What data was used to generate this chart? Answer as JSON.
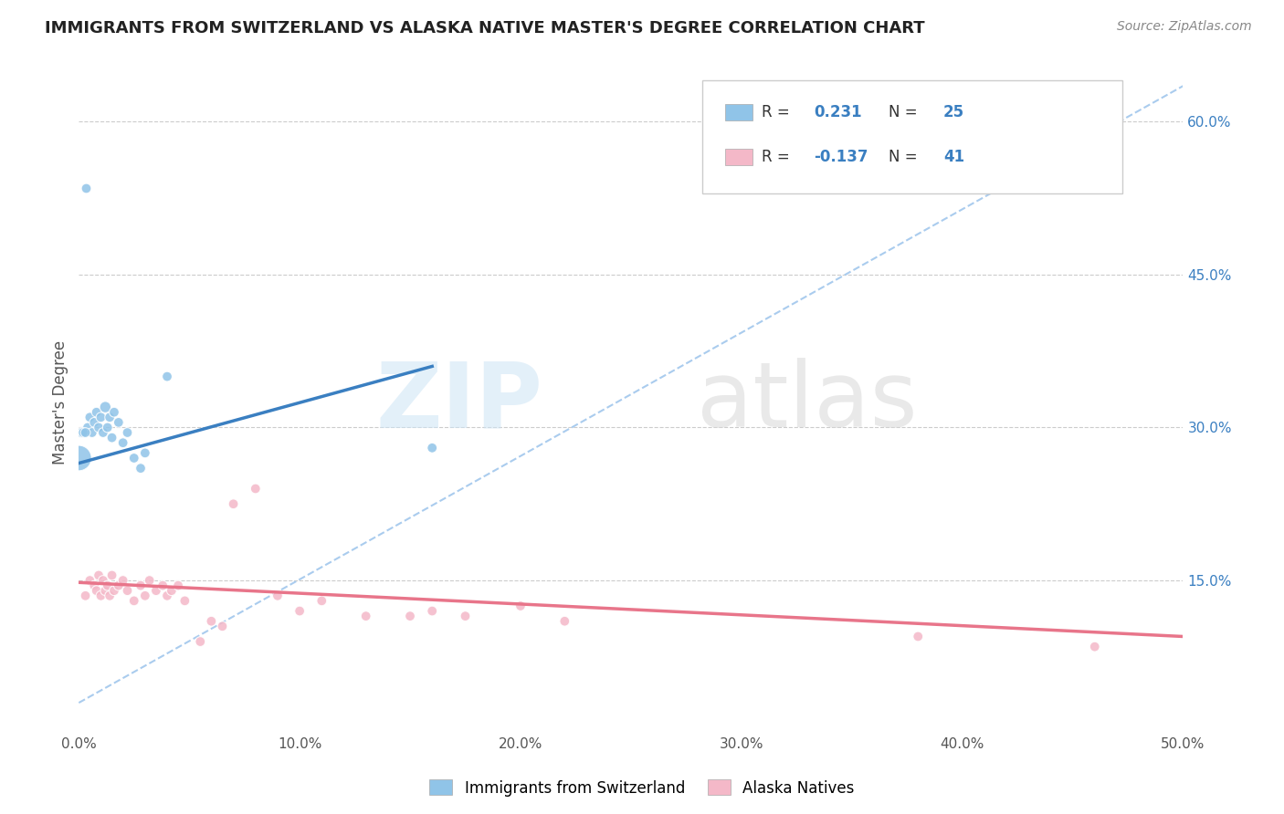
{
  "title": "IMMIGRANTS FROM SWITZERLAND VS ALASKA NATIVE MASTER'S DEGREE CORRELATION CHART",
  "source": "Source: ZipAtlas.com",
  "ylabel": "Master's Degree",
  "xlim": [
    0.0,
    0.5
  ],
  "ylim": [
    0.0,
    0.65
  ],
  "x_ticks": [
    0.0,
    0.1,
    0.2,
    0.3,
    0.4,
    0.5
  ],
  "x_tick_labels": [
    "0.0%",
    "10.0%",
    "20.0%",
    "30.0%",
    "40.0%",
    "50.0%"
  ],
  "y_ticks_right": [
    0.15,
    0.3,
    0.45,
    0.6
  ],
  "y_tick_labels_right": [
    "15.0%",
    "30.0%",
    "45.0%",
    "60.0%"
  ],
  "grid_color": "#cccccc",
  "background_color": "#ffffff",
  "blue_color": "#90c4e8",
  "pink_color": "#f4b8c8",
  "blue_line_color": "#3a7fc1",
  "pink_line_color": "#e8758a",
  "legend_text_color": "#3a7fc1",
  "r_blue": 0.231,
  "n_blue": 25,
  "r_pink": -0.137,
  "n_pink": 41,
  "trend_line_gray": "#aaccee",
  "blue_scatter_x": [
    0.004,
    0.005,
    0.006,
    0.007,
    0.008,
    0.009,
    0.01,
    0.011,
    0.012,
    0.013,
    0.014,
    0.015,
    0.016,
    0.018,
    0.02,
    0.022,
    0.025,
    0.028,
    0.03,
    0.04,
    0.001,
    0.002,
    0.003,
    0.0,
    0.16
  ],
  "blue_scatter_y": [
    0.3,
    0.31,
    0.295,
    0.305,
    0.315,
    0.3,
    0.31,
    0.295,
    0.32,
    0.3,
    0.31,
    0.29,
    0.315,
    0.305,
    0.285,
    0.295,
    0.27,
    0.26,
    0.275,
    0.35,
    0.295,
    0.295,
    0.295,
    0.27,
    0.28
  ],
  "blue_scatter_sizes": [
    60,
    60,
    60,
    60,
    60,
    60,
    60,
    60,
    80,
    60,
    60,
    60,
    60,
    60,
    60,
    60,
    60,
    60,
    60,
    60,
    60,
    60,
    60,
    400,
    60
  ],
  "blue_outlier_x": [
    0.003
  ],
  "blue_outlier_y": [
    0.535
  ],
  "blue_outlier_sizes": [
    60
  ],
  "pink_scatter_x": [
    0.003,
    0.005,
    0.007,
    0.008,
    0.009,
    0.01,
    0.011,
    0.012,
    0.013,
    0.014,
    0.015,
    0.016,
    0.018,
    0.02,
    0.022,
    0.025,
    0.028,
    0.03,
    0.032,
    0.035,
    0.038,
    0.04,
    0.042,
    0.045,
    0.048,
    0.055,
    0.06,
    0.065,
    0.07,
    0.08,
    0.09,
    0.1,
    0.11,
    0.13,
    0.15,
    0.16,
    0.175,
    0.2,
    0.22,
    0.38,
    0.46
  ],
  "pink_scatter_y": [
    0.135,
    0.15,
    0.145,
    0.14,
    0.155,
    0.135,
    0.15,
    0.14,
    0.145,
    0.135,
    0.155,
    0.14,
    0.145,
    0.15,
    0.14,
    0.13,
    0.145,
    0.135,
    0.15,
    0.14,
    0.145,
    0.135,
    0.14,
    0.145,
    0.13,
    0.09,
    0.11,
    0.105,
    0.225,
    0.24,
    0.135,
    0.12,
    0.13,
    0.115,
    0.115,
    0.12,
    0.115,
    0.125,
    0.11,
    0.095,
    0.085
  ],
  "pink_scatter_sizes": [
    60,
    60,
    60,
    60,
    60,
    60,
    60,
    60,
    60,
    60,
    60,
    60,
    60,
    60,
    60,
    60,
    60,
    60,
    60,
    60,
    60,
    60,
    60,
    60,
    60,
    60,
    60,
    60,
    60,
    60,
    60,
    60,
    60,
    60,
    60,
    60,
    60,
    60,
    60,
    60,
    60
  ],
  "blue_line_x0": 0.0,
  "blue_line_y0": 0.265,
  "blue_line_x1": 0.16,
  "blue_line_y1": 0.36,
  "pink_line_x0": 0.0,
  "pink_line_y0": 0.148,
  "pink_line_x1": 0.5,
  "pink_line_y1": 0.095,
  "gray_line_x0": 0.0,
  "gray_line_y0": 0.03,
  "gray_line_x1": 0.5,
  "gray_line_y1": 0.635
}
